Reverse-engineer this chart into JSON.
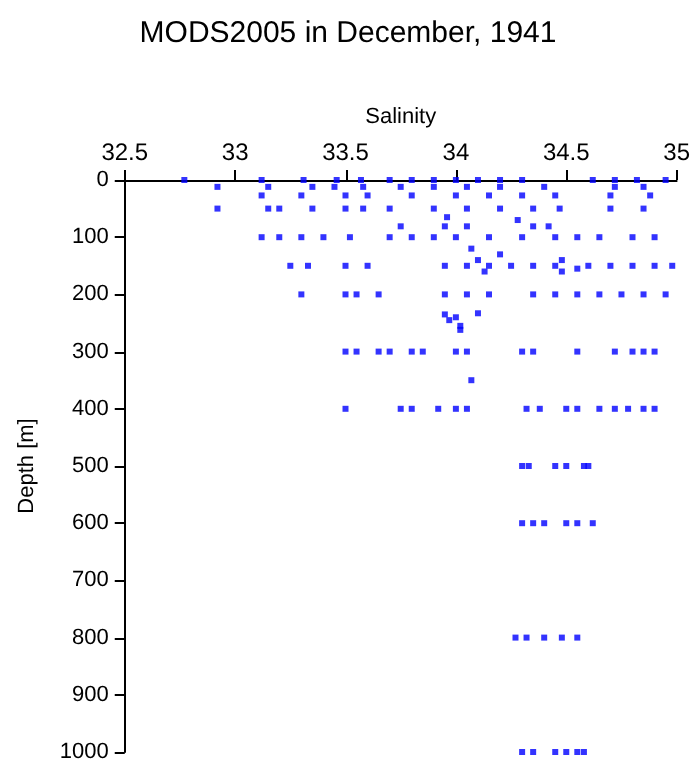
{
  "chart_data": {
    "type": "scatter",
    "title": "MODS2005 in December, 1941",
    "xlabel": "Salinity",
    "ylabel": "Depth [m]",
    "xlim": [
      32.5,
      35
    ],
    "xticks": [
      32.5,
      33,
      33.5,
      34,
      34.5,
      35
    ],
    "ylim": [
      1000,
      0
    ],
    "yticks": [
      0,
      100,
      200,
      300,
      400,
      500,
      600,
      700,
      800,
      900,
      1000
    ],
    "grid": false,
    "marker": "square",
    "series": [
      {
        "color": "#0000ff",
        "x": [
          32.77,
          33.12,
          33.31,
          33.46,
          33.57,
          33.7,
          33.8,
          33.9,
          34.0,
          34.1,
          34.2,
          34.3,
          34.62,
          34.72,
          34.82,
          34.95,
          32.92,
          33.15,
          33.35,
          33.45,
          33.58,
          33.75,
          33.9,
          34.05,
          34.2,
          34.4,
          34.72,
          34.85,
          33.12,
          33.3,
          33.5,
          33.6,
          33.8,
          34.0,
          34.15,
          34.3,
          34.45,
          34.7,
          34.88,
          32.92,
          33.15,
          33.2,
          33.35,
          33.5,
          33.58,
          33.7,
          33.9,
          34.05,
          34.2,
          34.35,
          34.47,
          34.7,
          34.85,
          33.96,
          34.28,
          33.75,
          33.95,
          34.05,
          34.35,
          34.42,
          33.12,
          33.2,
          33.3,
          33.4,
          33.52,
          33.7,
          33.8,
          33.9,
          34.0,
          34.15,
          34.3,
          34.45,
          34.55,
          34.65,
          34.8,
          34.9,
          34.07,
          34.1,
          34.2,
          34.13,
          34.48,
          34.48,
          34.55,
          33.25,
          33.33,
          33.5,
          33.6,
          33.95,
          34.05,
          34.15,
          34.25,
          34.35,
          34.45,
          34.6,
          34.7,
          34.8,
          34.9,
          34.98,
          33.3,
          33.5,
          33.55,
          33.65,
          33.95,
          34.05,
          34.15,
          34.35,
          34.45,
          34.55,
          34.65,
          34.75,
          34.85,
          34.95,
          34.1,
          33.95,
          33.97,
          34.0,
          34.02,
          34.02,
          33.5,
          33.55,
          33.65,
          33.7,
          33.8,
          33.85,
          34.0,
          34.05,
          34.3,
          34.35,
          34.55,
          34.72,
          34.8,
          34.85,
          34.9,
          34.07,
          33.5,
          33.75,
          33.8,
          33.92,
          34.0,
          34.05,
          34.32,
          34.38,
          34.5,
          34.55,
          34.65,
          34.72,
          34.78,
          34.85,
          34.9,
          34.3,
          34.33,
          34.45,
          34.5,
          34.58,
          34.6,
          34.3,
          34.35,
          34.4,
          34.5,
          34.55,
          34.62,
          34.27,
          34.32,
          34.4,
          34.48,
          34.55,
          34.3,
          34.35,
          34.45,
          34.5,
          34.55,
          34.58
        ],
        "values": [
          0,
          0,
          0,
          0,
          0,
          0,
          0,
          0,
          0,
          0,
          0,
          0,
          0,
          0,
          0,
          0,
          12,
          12,
          12,
          12,
          12,
          12,
          12,
          12,
          12,
          12,
          12,
          12,
          27,
          27,
          27,
          27,
          27,
          27,
          27,
          27,
          27,
          27,
          27,
          50,
          50,
          50,
          50,
          50,
          50,
          50,
          50,
          50,
          50,
          50,
          50,
          50,
          50,
          65,
          70,
          81,
          81,
          81,
          81,
          81,
          100,
          100,
          100,
          100,
          100,
          100,
          100,
          100,
          100,
          100,
          100,
          100,
          100,
          100,
          100,
          100,
          120,
          140,
          130,
          160,
          140,
          160,
          155,
          150,
          150,
          150,
          150,
          150,
          150,
          150,
          150,
          150,
          150,
          150,
          150,
          150,
          150,
          150,
          200,
          200,
          200,
          200,
          200,
          200,
          200,
          200,
          200,
          200,
          200,
          200,
          200,
          200,
          233,
          235,
          245,
          240,
          255,
          262,
          300,
          300,
          300,
          300,
          300,
          300,
          300,
          300,
          300,
          300,
          300,
          300,
          300,
          300,
          300,
          350,
          400,
          400,
          400,
          400,
          400,
          400,
          400,
          400,
          400,
          400,
          400,
          400,
          400,
          400,
          400,
          500,
          500,
          500,
          500,
          500,
          500,
          600,
          600,
          600,
          600,
          600,
          600,
          800,
          800,
          800,
          800,
          800,
          1000,
          1000,
          1000,
          1000,
          1000,
          1000
        ]
      }
    ]
  }
}
